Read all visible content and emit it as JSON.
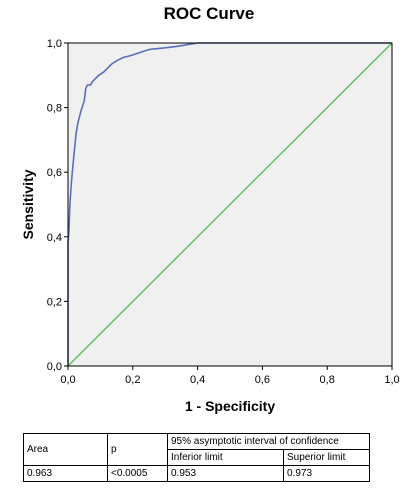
{
  "chart_data": {
    "type": "line",
    "title": "ROC Curve",
    "xlabel": "1 - Specificity",
    "ylabel": "Sensitivity",
    "xlim": [
      0,
      1
    ],
    "ylim": [
      0,
      1
    ],
    "xticks": [
      "0,0",
      "0,2",
      "0,4",
      "0,6",
      "0,8",
      "1,0"
    ],
    "yticks": [
      "0,0",
      "0,2",
      "0,4",
      "0,6",
      "0,8",
      "1,0"
    ],
    "grid": false,
    "series": [
      {
        "color": "#5a6fb8",
        "x": [
          0,
          0,
          0.003,
          0.006,
          0.01,
          0.015,
          0.02,
          0.025,
          0.03,
          0.04,
          0.05,
          0.055,
          0.06,
          0.07,
          0.075,
          0.085,
          0.095,
          0.11,
          0.12,
          0.135,
          0.15,
          0.17,
          0.19,
          0.22,
          0.25,
          0.27,
          0.3,
          0.34,
          0.37,
          0.4,
          0.47,
          0.6,
          0.8,
          1.0
        ],
        "y": [
          0,
          0.38,
          0.42,
          0.5,
          0.56,
          0.62,
          0.67,
          0.72,
          0.75,
          0.79,
          0.82,
          0.86,
          0.87,
          0.87,
          0.88,
          0.89,
          0.9,
          0.91,
          0.92,
          0.935,
          0.945,
          0.955,
          0.96,
          0.97,
          0.98,
          0.982,
          0.985,
          0.99,
          0.995,
          1.0,
          1.0,
          1.0,
          1.0,
          1.0
        ]
      },
      {
        "color": "#55bb55",
        "x": [
          0,
          1
        ],
        "y": [
          0,
          1
        ]
      }
    ],
    "colors": {
      "plot_bg": "#f0f0f0",
      "axis": "#000000"
    }
  },
  "stats_table": {
    "headers": {
      "area": "Area",
      "p": "p",
      "ci_group": "95% asymptotic interval of confidence",
      "inferior": "Inferior limit",
      "superior": "Superior limit"
    },
    "row": {
      "area": "0.963",
      "p": "<0.0005",
      "inferior": "0.953",
      "superior": "0.973"
    }
  }
}
